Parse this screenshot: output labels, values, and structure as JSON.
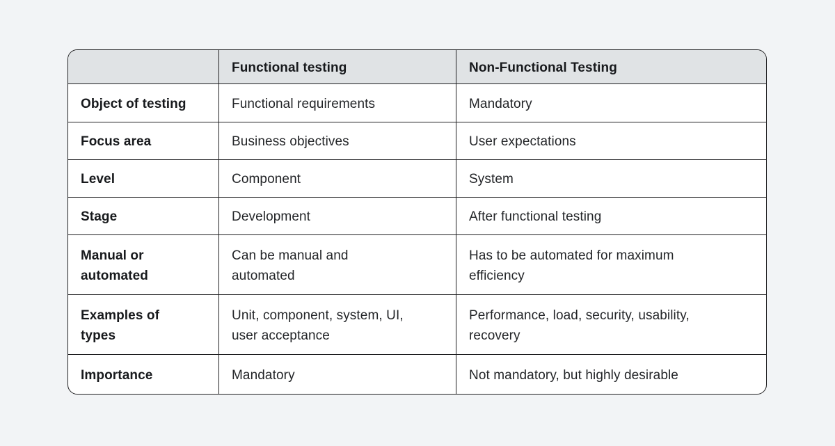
{
  "header": {
    "empty": "",
    "functional": "Functional testing",
    "non_functional": "Non-Functional Testing"
  },
  "rows": [
    {
      "label": "Object of testing",
      "functional": "Functional requirements",
      "non_functional": "Mandatory"
    },
    {
      "label": "Focus area",
      "functional": "Business objectives",
      "non_functional": "User expectations"
    },
    {
      "label": "Level",
      "functional": "Component",
      "non_functional": "System"
    },
    {
      "label": "Stage",
      "functional": "Development",
      "non_functional": "After functional testing"
    },
    {
      "label": "Manual or\nautomated",
      "functional": "Can be manual and\nautomated",
      "non_functional": "Has to be automated for maximum\nefficiency"
    },
    {
      "label": "Examples of\ntypes",
      "functional": "Unit, component, system, UI,\nuser acceptance",
      "non_functional": "Performance, load, security, usability,\nrecovery"
    },
    {
      "label": "Importance",
      "functional": "Mandatory",
      "non_functional": "Not mandatory, but highly desirable"
    }
  ],
  "colors": {
    "page_background": "#F2F4F6",
    "table_background": "#FFFFFF",
    "header_background": "#E0E3E5",
    "border": "#1E1E20",
    "label_text": "#17191C",
    "body_text": "#232528"
  }
}
